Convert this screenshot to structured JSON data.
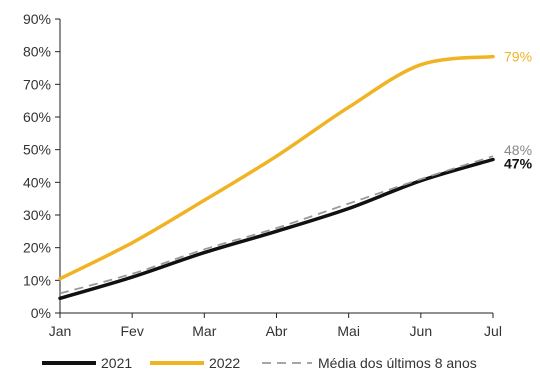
{
  "colors": {
    "series_2021": "#111111",
    "series_2022": "#F0B323",
    "series_avg": "#999999",
    "axis": "#222222",
    "tick_text": "#333333"
  },
  "chart_data": {
    "type": "line",
    "title": "",
    "xlabel": "",
    "ylabel": "",
    "categories": [
      "Jan",
      "Fev",
      "Mar",
      "Abr",
      "Mai",
      "Jun",
      "Jul"
    ],
    "ylim": [
      0,
      90
    ],
    "yticks": [
      0,
      10,
      20,
      30,
      40,
      50,
      60,
      70,
      80,
      90
    ],
    "ytick_labels": [
      "0%",
      "10%",
      "20%",
      "30%",
      "40%",
      "50%",
      "60%",
      "70%",
      "80%",
      "90%"
    ],
    "grid": false,
    "legend_position": "bottom",
    "series": [
      {
        "name": "2021",
        "key": "s2021",
        "color": "#111111",
        "style": "solid",
        "values": [
          4.5,
          11,
          18.5,
          25,
          32,
          40.5,
          47
        ],
        "end_label": "47%",
        "end_label_bold": true
      },
      {
        "name": "2022",
        "key": "s2022",
        "color": "#F0B323",
        "style": "solid",
        "values": [
          10.5,
          21.5,
          34.5,
          48,
          63,
          76,
          78.5
        ],
        "end_label": "79%",
        "end_label_bold": false
      },
      {
        "name": "Média dos últimos 8 anos",
        "key": "savg",
        "color": "#999999",
        "style": "dashed",
        "values": [
          6,
          12,
          19.5,
          26,
          33.5,
          41,
          48
        ],
        "end_label": "48%",
        "end_label_bold": false
      }
    ]
  }
}
